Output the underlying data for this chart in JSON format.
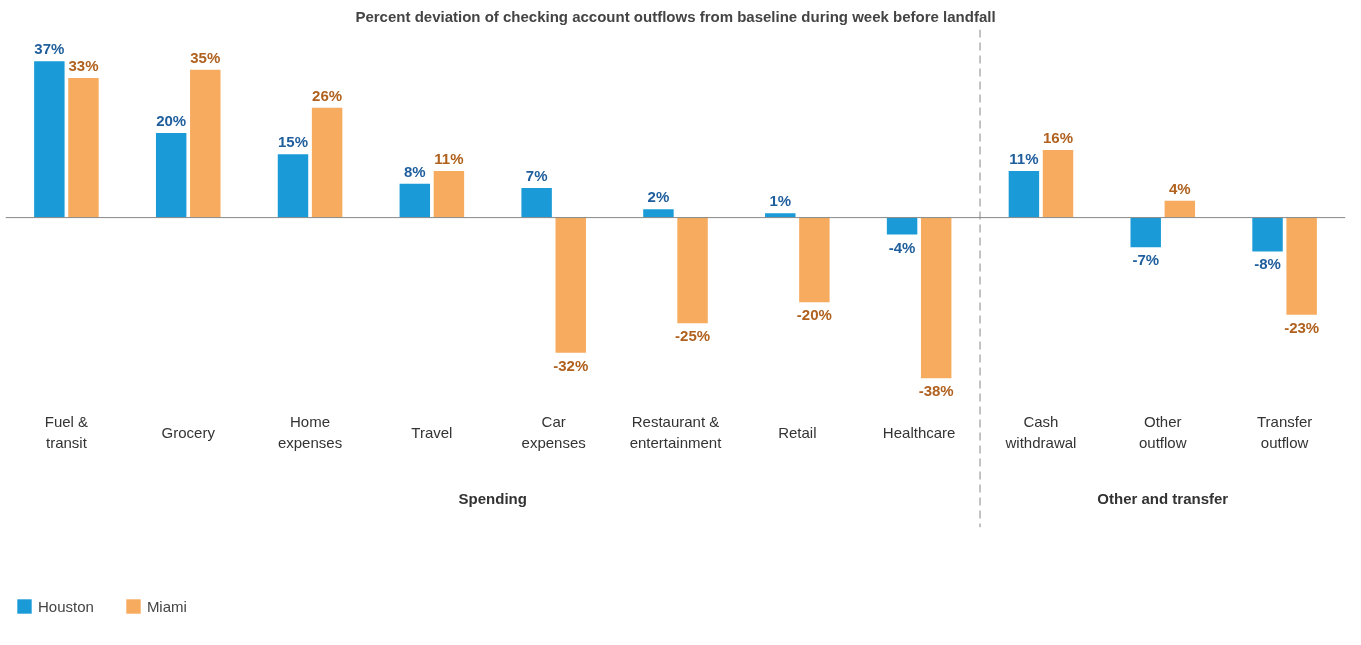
{
  "chart_data": {
    "type": "bar",
    "title": "Percent deviation of checking account outflows from baseline during week before landfall",
    "categories": [
      "Fuel & transit",
      "Grocery",
      "Home expenses",
      "Travel",
      "Car expenses",
      "Restaurant & entertainment",
      "Retail",
      "Healthcare",
      "Cash withdrawal",
      "Other outflow",
      "Transfer outflow"
    ],
    "series": [
      {
        "name": "Houston",
        "color": "#1a9bd7",
        "values": [
          37,
          20,
          15,
          8,
          7,
          2,
          1,
          -4,
          11,
          -7,
          -8
        ],
        "value_labels": [
          "37%",
          "20%",
          "15%",
          "8%",
          "7%",
          "2%",
          "1%",
          "-4%",
          "11%",
          "-7%",
          "-8%"
        ]
      },
      {
        "name": "Miami",
        "color": "#f7ab5e",
        "values": [
          33,
          35,
          26,
          11,
          -32,
          -25,
          -20,
          -38,
          16,
          4,
          -23
        ],
        "value_labels": [
          "33%",
          "35%",
          "26%",
          "11%",
          "-32%",
          "-25%",
          "-20%",
          "-38%",
          "16%",
          "4%",
          "-23%"
        ]
      }
    ],
    "annotations": [
      "Spending",
      "Other and transfer"
    ],
    "legend": "bottom left",
    "grid": false
  }
}
